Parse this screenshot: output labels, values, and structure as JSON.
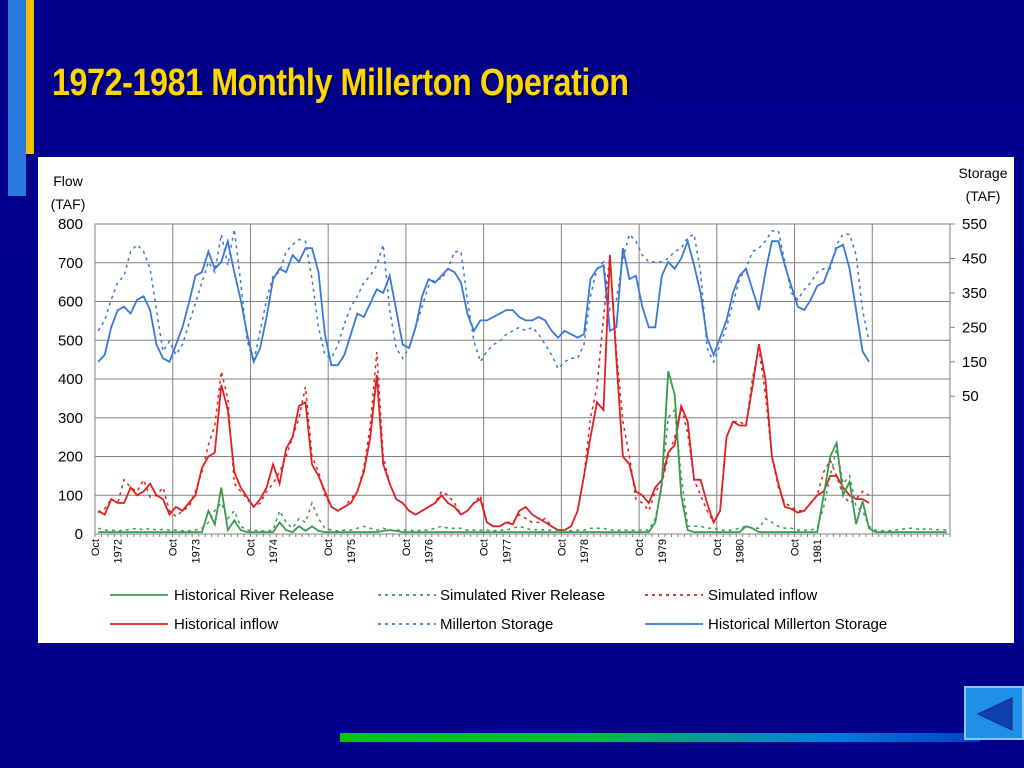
{
  "slide": {
    "title": "1972-1981 Monthly Millerton Operation"
  },
  "colors": {
    "background": "#000090",
    "title": "#ffd700",
    "river_release": "#3a9a50",
    "inflow": "#e02020",
    "storage": "#3a78d8",
    "accent_blue": "#2a7be0",
    "accent_yellow": "#f0c000"
  },
  "icons": {
    "back": "left-triangle-icon"
  },
  "chart_data": {
    "type": "line",
    "title": "",
    "left_axis": {
      "label_line1": "Flow",
      "label_line2": "(TAF)",
      "ylim": [
        0,
        800
      ],
      "ticks": [
        "0",
        "100",
        "200",
        "300",
        "400",
        "500",
        "600",
        "700",
        "800"
      ]
    },
    "right_axis": {
      "label_line1": "Storage",
      "label_line2": "(TAF)",
      "ylim": [
        -350,
        550
      ],
      "ticks": [
        "50",
        "150",
        "250",
        "350",
        "450",
        "550"
      ]
    },
    "x_tick_labels": [
      "Oct",
      "1972",
      "Oct",
      "1973",
      "Oct",
      "1974",
      "Oct",
      "1975",
      "Oct",
      "1976",
      "Oct",
      "1977",
      "Oct",
      "1978",
      "Oct",
      "1979",
      "Oct",
      "1980",
      "Oct",
      "1981"
    ],
    "grid": true,
    "legend_position": "bottom",
    "start_month": "Oct 1971",
    "series": [
      {
        "name": "Historical River Release",
        "axis": "left",
        "style": "solid",
        "color": "#3a9a50",
        "values": [
          5,
          5,
          5,
          5,
          5,
          5,
          5,
          5,
          5,
          5,
          5,
          5,
          5,
          5,
          5,
          5,
          5,
          60,
          25,
          120,
          10,
          35,
          10,
          5,
          5,
          5,
          5,
          5,
          30,
          10,
          5,
          20,
          8,
          20,
          8,
          5,
          5,
          5,
          5,
          5,
          5,
          5,
          5,
          5,
          8,
          10,
          8,
          5,
          5,
          5,
          5,
          5,
          5,
          5,
          5,
          5,
          5,
          5,
          5,
          5,
          5,
          5,
          5,
          5,
          5,
          5,
          5,
          5,
          5,
          5,
          5,
          5,
          5,
          5,
          5,
          5,
          5,
          5,
          5,
          5,
          5,
          5,
          5,
          5,
          5,
          5,
          30,
          130,
          420,
          360,
          100,
          10,
          5,
          5,
          5,
          5,
          5,
          5,
          5,
          5,
          20,
          15,
          5,
          5,
          5,
          5,
          5,
          5,
          5,
          5,
          5,
          5,
          100,
          200,
          235,
          100,
          135,
          25,
          85,
          15,
          5,
          5,
          5,
          5,
          5,
          5,
          5,
          5,
          5,
          5,
          5,
          5
        ]
      },
      {
        "name": "Simulated River Release",
        "axis": "left",
        "style": "dotted",
        "color": "#3a9a50",
        "values": [
          15,
          10,
          10,
          8,
          10,
          12,
          15,
          10,
          15,
          10,
          12,
          10,
          10,
          8,
          8,
          10,
          15,
          30,
          60,
          80,
          40,
          60,
          20,
          10,
          10,
          8,
          8,
          10,
          60,
          30,
          15,
          40,
          30,
          80,
          40,
          15,
          10,
          8,
          10,
          10,
          15,
          20,
          15,
          10,
          15,
          10,
          10,
          10,
          10,
          8,
          10,
          10,
          15,
          20,
          15,
          15,
          15,
          10,
          10,
          10,
          10,
          8,
          10,
          10,
          15,
          20,
          15,
          10,
          12,
          10,
          10,
          10,
          10,
          8,
          10,
          10,
          15,
          15,
          15,
          10,
          10,
          10,
          10,
          10,
          10,
          10,
          40,
          120,
          300,
          320,
          150,
          20,
          20,
          20,
          15,
          15,
          10,
          10,
          10,
          15,
          20,
          15,
          15,
          40,
          30,
          20,
          15,
          15,
          10,
          10,
          10,
          15,
          70,
          150,
          220,
          130,
          150,
          70,
          60,
          20,
          10,
          8,
          8,
          10,
          12,
          15,
          15,
          10,
          15,
          10,
          12,
          10
        ]
      },
      {
        "name": "Simulated inflow",
        "axis": "left",
        "style": "dotted",
        "color": "#e02020",
        "values": [
          55,
          65,
          90,
          80,
          140,
          120,
          110,
          140,
          95,
          100,
          120,
          60,
          45,
          60,
          70,
          110,
          160,
          230,
          280,
          420,
          350,
          130,
          110,
          90,
          70,
          80,
          110,
          130,
          160,
          200,
          250,
          300,
          380,
          200,
          160,
          100,
          70,
          60,
          70,
          90,
          110,
          170,
          280,
          470,
          200,
          130,
          90,
          80,
          60,
          50,
          60,
          70,
          80,
          110,
          100,
          80,
          50,
          60,
          80,
          100,
          30,
          20,
          20,
          30,
          30,
          50,
          40,
          30,
          30,
          40,
          20,
          10,
          10,
          20,
          60,
          150,
          300,
          380,
          560,
          720,
          470,
          290,
          200,
          90,
          80,
          60,
          110,
          130,
          200,
          250,
          330,
          260,
          140,
          100,
          60,
          30,
          60,
          250,
          290,
          290,
          280,
          400,
          480,
          360,
          200,
          120,
          80,
          70,
          60,
          60,
          80,
          100,
          160,
          190,
          150,
          100,
          80,
          90,
          110,
          100
        ]
      },
      {
        "name": "Historical inflow",
        "axis": "left",
        "style": "solid",
        "color": "#e02020",
        "values": [
          60,
          50,
          90,
          80,
          80,
          120,
          100,
          110,
          130,
          100,
          90,
          50,
          70,
          60,
          80,
          100,
          170,
          200,
          210,
          385,
          320,
          160,
          120,
          95,
          70,
          90,
          120,
          180,
          130,
          220,
          250,
          330,
          340,
          180,
          150,
          110,
          70,
          60,
          70,
          80,
          110,
          160,
          250,
          410,
          180,
          130,
          90,
          80,
          60,
          50,
          60,
          70,
          80,
          100,
          80,
          70,
          50,
          60,
          80,
          90,
          30,
          20,
          20,
          30,
          25,
          60,
          70,
          50,
          40,
          30,
          20,
          10,
          10,
          20,
          60,
          150,
          250,
          340,
          320,
          720,
          450,
          200,
          180,
          110,
          100,
          80,
          120,
          140,
          210,
          230,
          330,
          290,
          140,
          140,
          80,
          30,
          60,
          250,
          290,
          280,
          280,
          380,
          490,
          400,
          200,
          130,
          70,
          65,
          55,
          60,
          80,
          100,
          110,
          150,
          150,
          120,
          100,
          90,
          90,
          80
        ]
      },
      {
        "name": "Millerton Storage",
        "axis": "right",
        "style": "dotted",
        "color": "#3a78d8",
        "values": [
          240,
          270,
          330,
          380,
          400,
          470,
          490,
          470,
          420,
          300,
          180,
          210,
          170,
          200,
          260,
          320,
          380,
          440,
          410,
          520,
          430,
          535,
          380,
          210,
          150,
          240,
          330,
          400,
          410,
          470,
          490,
          505,
          500,
          390,
          250,
          170,
          160,
          200,
          260,
          310,
          340,
          380,
          400,
          430,
          490,
          300,
          190,
          160,
          190,
          250,
          310,
          370,
          390,
          390,
          420,
          470,
          470,
          330,
          210,
          150,
          180,
          200,
          210,
          230,
          240,
          250,
          240,
          250,
          230,
          200,
          170,
          130,
          150,
          160,
          160,
          200,
          340,
          420,
          440,
          300,
          330,
          450,
          520,
          500,
          460,
          440,
          440,
          440,
          450,
          470,
          480,
          510,
          520,
          410,
          190,
          150,
          200,
          250,
          320,
          390,
          420,
          470,
          480,
          500,
          530,
          530,
          440,
          350,
          330,
          360,
          380,
          410,
          420,
          420,
          490,
          520,
          520,
          460,
          300,
          210
        ]
      },
      {
        "name": "Historical Millerton Storage",
        "axis": "right",
        "style": "solid",
        "color": "#3a78d8",
        "values": [
          150,
          170,
          250,
          300,
          310,
          290,
          330,
          340,
          300,
          200,
          160,
          150,
          200,
          250,
          320,
          400,
          410,
          470,
          420,
          440,
          500,
          410,
          330,
          230,
          150,
          190,
          280,
          390,
          420,
          410,
          460,
          440,
          480,
          480,
          410,
          230,
          140,
          140,
          170,
          230,
          290,
          280,
          320,
          360,
          350,
          400,
          300,
          200,
          190,
          250,
          340,
          390,
          380,
          400,
          420,
          410,
          380,
          290,
          240,
          270,
          270,
          280,
          290,
          300,
          300,
          280,
          270,
          270,
          280,
          270,
          240,
          220,
          240,
          230,
          220,
          230,
          390,
          420,
          430,
          240,
          250,
          480,
          390,
          400,
          310,
          250,
          250,
          400,
          440,
          420,
          450,
          500,
          430,
          350,
          220,
          170,
          220,
          270,
          350,
          400,
          420,
          360,
          300,
          410,
          500,
          500,
          430,
          370,
          310,
          300,
          330,
          370,
          380,
          430,
          480,
          490,
          420,
          300,
          180,
          150
        ]
      }
    ]
  },
  "legend": {
    "items": [
      {
        "label": "Historical River Release",
        "color": "#3a9a50",
        "style": "solid"
      },
      {
        "label": "Simulated River Release",
        "color": "#3a9a50",
        "style": "dotted"
      },
      {
        "label": "Simulated inflow",
        "color": "#e02020",
        "style": "dotted"
      },
      {
        "label": "Historical inflow",
        "color": "#e02020",
        "style": "solid"
      },
      {
        "label": "Millerton Storage",
        "color": "#3a78d8",
        "style": "dotted"
      },
      {
        "label": "Historical Millerton Storage",
        "color": "#3a78d8",
        "style": "solid"
      }
    ]
  }
}
